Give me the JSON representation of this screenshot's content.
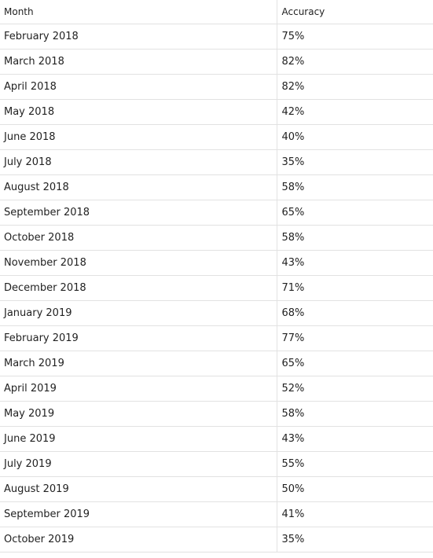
{
  "table": {
    "headers": [
      "Month",
      "Accuracy"
    ],
    "rows": [
      {
        "month": "February 2018",
        "accuracy": "75%"
      },
      {
        "month": "March 2018",
        "accuracy": "82%"
      },
      {
        "month": "April 2018",
        "accuracy": "82%"
      },
      {
        "month": "May 2018",
        "accuracy": "42%"
      },
      {
        "month": "June 2018",
        "accuracy": "40%"
      },
      {
        "month": "July 2018",
        "accuracy": "35%"
      },
      {
        "month": "August 2018",
        "accuracy": "58%"
      },
      {
        "month": "September 2018",
        "accuracy": "65%"
      },
      {
        "month": "October 2018",
        "accuracy": "58%"
      },
      {
        "month": "November 2018",
        "accuracy": "43%"
      },
      {
        "month": "December 2018",
        "accuracy": "71%"
      },
      {
        "month": "January 2019",
        "accuracy": "68%"
      },
      {
        "month": "February 2019",
        "accuracy": "77%"
      },
      {
        "month": "March 2019",
        "accuracy": "65%"
      },
      {
        "month": "April 2019",
        "accuracy": "52%"
      },
      {
        "month": "May 2019",
        "accuracy": "58%"
      },
      {
        "month": "June 2019",
        "accuracy": "43%"
      },
      {
        "month": "July 2019",
        "accuracy": "55%"
      },
      {
        "month": "August 2019",
        "accuracy": "50%"
      },
      {
        "month": "September 2019",
        "accuracy": "41%"
      },
      {
        "month": "October 2019",
        "accuracy": "35%"
      }
    ]
  }
}
